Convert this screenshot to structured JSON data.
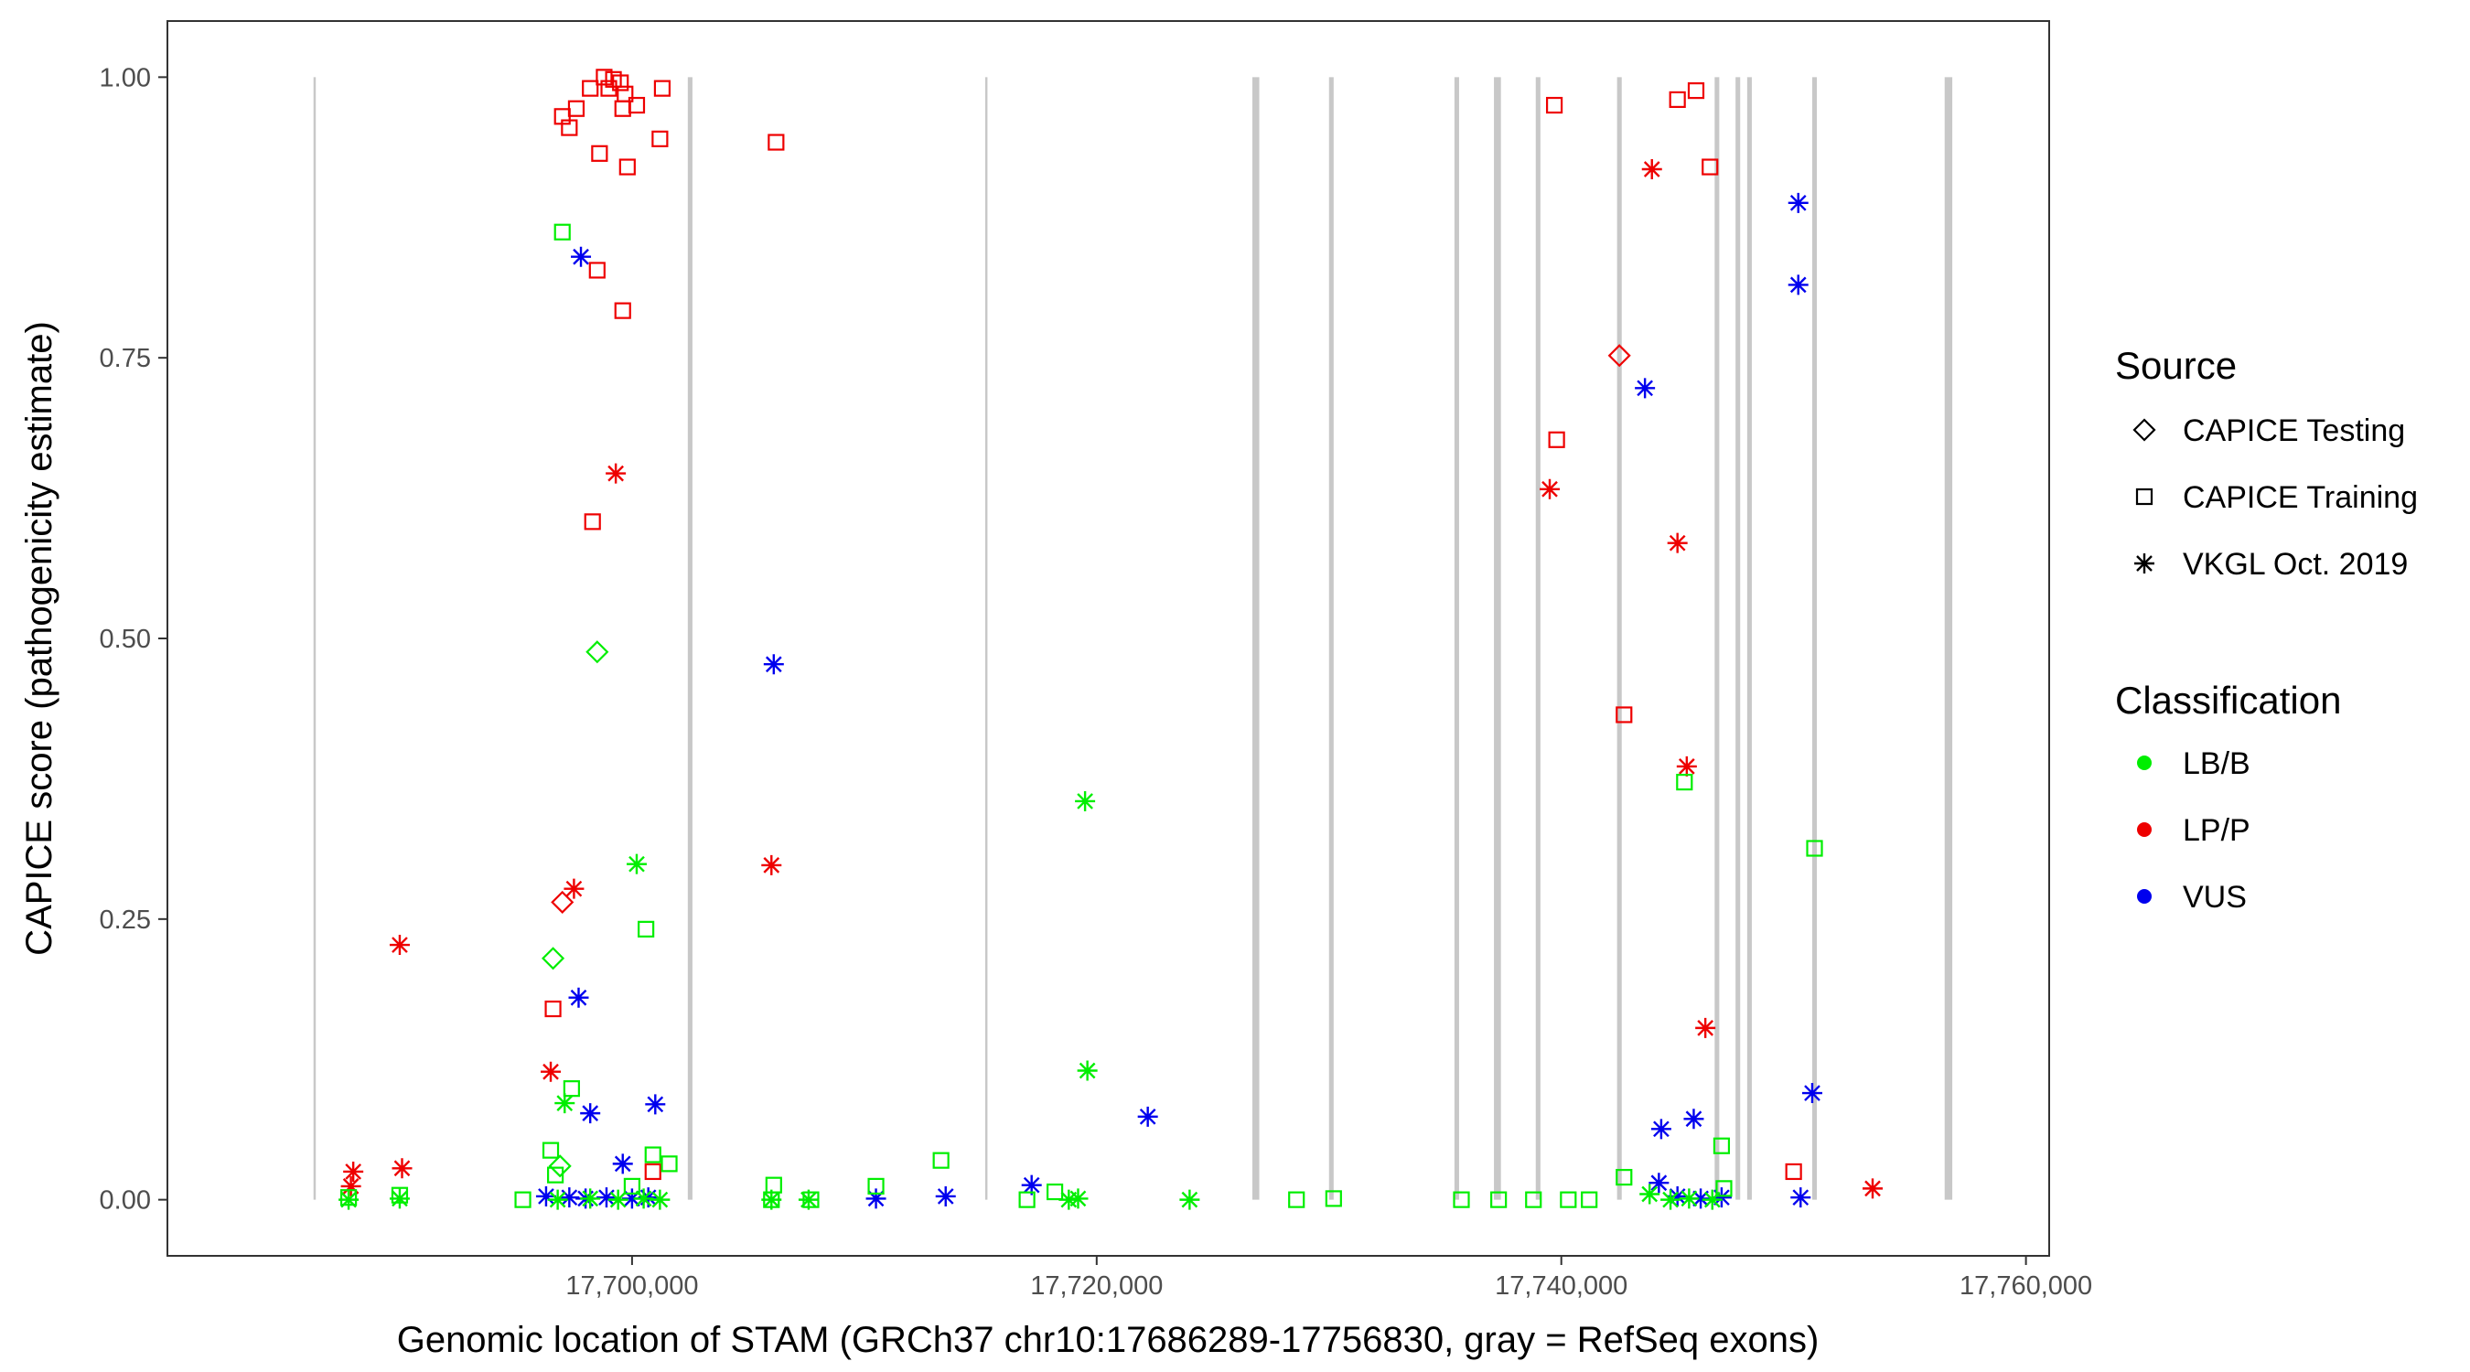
{
  "chart_data": {
    "type": "scatter",
    "xlabel": "Genomic location of STAM (GRCh37 chr10:17686289-17756830, gray = RefSeq exons)",
    "ylabel": "CAPICE score (pathogenicity estimate)",
    "xlim": [
      17680000,
      17761000
    ],
    "ylim": [
      -0.05,
      1.05
    ],
    "x_ticks": [
      17700000,
      17720000,
      17740000,
      17760000
    ],
    "x_tick_labels": [
      "17,700,000",
      "17,720,000",
      "17,740,000",
      "17,760,000"
    ],
    "y_ticks": [
      0,
      0.25,
      0.5,
      0.75,
      1.0
    ],
    "y_tick_labels": [
      "0.00",
      "0.25",
      "0.50",
      "0.75",
      "1.00"
    ],
    "grid": false,
    "exons": [
      [
        17686289,
        17686340
      ],
      [
        17702400,
        17702600
      ],
      [
        17715200,
        17715260
      ],
      [
        17726700,
        17727000
      ],
      [
        17730000,
        17730200
      ],
      [
        17735400,
        17735600
      ],
      [
        17737100,
        17737400
      ],
      [
        17738900,
        17739100
      ],
      [
        17742400,
        17742600
      ],
      [
        17746600,
        17746800
      ],
      [
        17747500,
        17747700
      ],
      [
        17748000,
        17748200
      ],
      [
        17750800,
        17751000
      ],
      [
        17756500,
        17756830
      ]
    ],
    "legend": {
      "placement": "right",
      "source_title": "Source",
      "source_entries": [
        {
          "label": "CAPICE Testing",
          "shape": "diamond"
        },
        {
          "label": "CAPICE Training",
          "shape": "square"
        },
        {
          "label": "VKGL Oct. 2019",
          "shape": "asterisk"
        }
      ],
      "class_title": "Classification",
      "class_entries": [
        {
          "label": "LB/B",
          "color": "#00ee00"
        },
        {
          "label": "LP/P",
          "color": "#ee0000"
        },
        {
          "label": "VUS",
          "color": "#0000ee"
        }
      ]
    },
    "colors": {
      "LB/B": "#00ee00",
      "LP/P": "#ee0000",
      "VUS": "#0000ee"
    },
    "points": [
      {
        "x": 17698800,
        "y": 1.0,
        "src": "square",
        "cls": "LP/P"
      },
      {
        "x": 17699200,
        "y": 0.998,
        "src": "square",
        "cls": "LP/P"
      },
      {
        "x": 17699500,
        "y": 0.995,
        "src": "square",
        "cls": "LP/P"
      },
      {
        "x": 17698200,
        "y": 0.99,
        "src": "square",
        "cls": "LP/P"
      },
      {
        "x": 17701300,
        "y": 0.99,
        "src": "square",
        "cls": "LP/P"
      },
      {
        "x": 17699000,
        "y": 0.99,
        "src": "square",
        "cls": "LP/P"
      },
      {
        "x": 17699700,
        "y": 0.985,
        "src": "square",
        "cls": "LP/P"
      },
      {
        "x": 17699600,
        "y": 0.972,
        "src": "square",
        "cls": "LP/P"
      },
      {
        "x": 17700200,
        "y": 0.975,
        "src": "square",
        "cls": "LP/P"
      },
      {
        "x": 17697600,
        "y": 0.972,
        "src": "square",
        "cls": "LP/P"
      },
      {
        "x": 17697000,
        "y": 0.965,
        "src": "square",
        "cls": "LP/P"
      },
      {
        "x": 17697300,
        "y": 0.955,
        "src": "square",
        "cls": "LP/P"
      },
      {
        "x": 17701200,
        "y": 0.945,
        "src": "square",
        "cls": "LP/P"
      },
      {
        "x": 17706200,
        "y": 0.942,
        "src": "square",
        "cls": "LP/P"
      },
      {
        "x": 17698600,
        "y": 0.932,
        "src": "square",
        "cls": "LP/P"
      },
      {
        "x": 17699800,
        "y": 0.92,
        "src": "square",
        "cls": "LP/P"
      },
      {
        "x": 17698500,
        "y": 0.828,
        "src": "square",
        "cls": "LP/P"
      },
      {
        "x": 17699600,
        "y": 0.792,
        "src": "square",
        "cls": "LP/P"
      },
      {
        "x": 17698300,
        "y": 0.604,
        "src": "square",
        "cls": "LP/P"
      },
      {
        "x": 17696600,
        "y": 0.17,
        "src": "square",
        "cls": "LP/P"
      },
      {
        "x": 17700900,
        "y": 0.025,
        "src": "square",
        "cls": "LP/P"
      },
      {
        "x": 17739700,
        "y": 0.975,
        "src": "square",
        "cls": "LP/P"
      },
      {
        "x": 17739800,
        "y": 0.677,
        "src": "square",
        "cls": "LP/P"
      },
      {
        "x": 17742700,
        "y": 0.432,
        "src": "square",
        "cls": "LP/P"
      },
      {
        "x": 17745000,
        "y": 0.98,
        "src": "square",
        "cls": "LP/P"
      },
      {
        "x": 17745800,
        "y": 0.988,
        "src": "square",
        "cls": "LP/P"
      },
      {
        "x": 17746400,
        "y": 0.92,
        "src": "square",
        "cls": "LP/P"
      },
      {
        "x": 17750000,
        "y": 0.025,
        "src": "square",
        "cls": "LP/P"
      },
      {
        "x": 17742500,
        "y": 0.752,
        "src": "diamond",
        "cls": "LP/P"
      },
      {
        "x": 17697000,
        "y": 0.265,
        "src": "diamond",
        "cls": "LP/P"
      },
      {
        "x": 17699300,
        "y": 0.647,
        "src": "asterisk",
        "cls": "LP/P"
      },
      {
        "x": 17697500,
        "y": 0.277,
        "src": "asterisk",
        "cls": "LP/P"
      },
      {
        "x": 17696500,
        "y": 0.114,
        "src": "asterisk",
        "cls": "LP/P"
      },
      {
        "x": 17706000,
        "y": 0.298,
        "src": "asterisk",
        "cls": "LP/P"
      },
      {
        "x": 17690000,
        "y": 0.227,
        "src": "asterisk",
        "cls": "LP/P"
      },
      {
        "x": 17688000,
        "y": 0.025,
        "src": "asterisk",
        "cls": "LP/P"
      },
      {
        "x": 17690100,
        "y": 0.028,
        "src": "asterisk",
        "cls": "LP/P"
      },
      {
        "x": 17687900,
        "y": 0.012,
        "src": "asterisk",
        "cls": "LP/P"
      },
      {
        "x": 17739500,
        "y": 0.633,
        "src": "asterisk",
        "cls": "LP/P"
      },
      {
        "x": 17743900,
        "y": 0.918,
        "src": "asterisk",
        "cls": "LP/P"
      },
      {
        "x": 17745000,
        "y": 0.585,
        "src": "asterisk",
        "cls": "LP/P"
      },
      {
        "x": 17745400,
        "y": 0.386,
        "src": "asterisk",
        "cls": "LP/P"
      },
      {
        "x": 17746200,
        "y": 0.153,
        "src": "asterisk",
        "cls": "LP/P"
      },
      {
        "x": 17753400,
        "y": 0.01,
        "src": "asterisk",
        "cls": "LP/P"
      },
      {
        "x": 17697800,
        "y": 0.84,
        "src": "asterisk",
        "cls": "VUS"
      },
      {
        "x": 17697700,
        "y": 0.18,
        "src": "asterisk",
        "cls": "VUS"
      },
      {
        "x": 17698200,
        "y": 0.077,
        "src": "asterisk",
        "cls": "VUS"
      },
      {
        "x": 17701000,
        "y": 0.085,
        "src": "asterisk",
        "cls": "VUS"
      },
      {
        "x": 17699600,
        "y": 0.032,
        "src": "asterisk",
        "cls": "VUS"
      },
      {
        "x": 17706100,
        "y": 0.477,
        "src": "asterisk",
        "cls": "VUS"
      },
      {
        "x": 17722200,
        "y": 0.074,
        "src": "asterisk",
        "cls": "VUS"
      },
      {
        "x": 17717200,
        "y": 0.013,
        "src": "asterisk",
        "cls": "VUS"
      },
      {
        "x": 17713500,
        "y": 0.003,
        "src": "asterisk",
        "cls": "VUS"
      },
      {
        "x": 17710500,
        "y": 0.001,
        "src": "asterisk",
        "cls": "VUS"
      },
      {
        "x": 17743600,
        "y": 0.723,
        "src": "asterisk",
        "cls": "VUS"
      },
      {
        "x": 17744300,
        "y": 0.063,
        "src": "asterisk",
        "cls": "VUS"
      },
      {
        "x": 17745700,
        "y": 0.072,
        "src": "asterisk",
        "cls": "VUS"
      },
      {
        "x": 17750200,
        "y": 0.888,
        "src": "asterisk",
        "cls": "VUS"
      },
      {
        "x": 17750200,
        "y": 0.815,
        "src": "asterisk",
        "cls": "VUS"
      },
      {
        "x": 17750800,
        "y": 0.095,
        "src": "asterisk",
        "cls": "VUS"
      },
      {
        "x": 17696300,
        "y": 0.003,
        "src": "asterisk",
        "cls": "VUS"
      },
      {
        "x": 17697300,
        "y": 0.002,
        "src": "asterisk",
        "cls": "VUS"
      },
      {
        "x": 17698000,
        "y": 0.001,
        "src": "asterisk",
        "cls": "VUS"
      },
      {
        "x": 17698900,
        "y": 0.002,
        "src": "asterisk",
        "cls": "VUS"
      },
      {
        "x": 17700000,
        "y": 0.001,
        "src": "asterisk",
        "cls": "VUS"
      },
      {
        "x": 17700700,
        "y": 0.002,
        "src": "asterisk",
        "cls": "VUS"
      },
      {
        "x": 17744200,
        "y": 0.015,
        "src": "asterisk",
        "cls": "VUS"
      },
      {
        "x": 17745000,
        "y": 0.003,
        "src": "asterisk",
        "cls": "VUS"
      },
      {
        "x": 17746000,
        "y": 0.001,
        "src": "asterisk",
        "cls": "VUS"
      },
      {
        "x": 17746900,
        "y": 0.002,
        "src": "asterisk",
        "cls": "VUS"
      },
      {
        "x": 17750300,
        "y": 0.002,
        "src": "asterisk",
        "cls": "VUS"
      },
      {
        "x": 17697000,
        "y": 0.862,
        "src": "square",
        "cls": "LB/B"
      },
      {
        "x": 17700600,
        "y": 0.241,
        "src": "square",
        "cls": "LB/B"
      },
      {
        "x": 17697400,
        "y": 0.099,
        "src": "square",
        "cls": "LB/B"
      },
      {
        "x": 17696500,
        "y": 0.044,
        "src": "square",
        "cls": "LB/B"
      },
      {
        "x": 17700900,
        "y": 0.04,
        "src": "square",
        "cls": "LB/B"
      },
      {
        "x": 17701600,
        "y": 0.032,
        "src": "square",
        "cls": "LB/B"
      },
      {
        "x": 17696700,
        "y": 0.022,
        "src": "square",
        "cls": "LB/B"
      },
      {
        "x": 17700000,
        "y": 0.012,
        "src": "square",
        "cls": "LB/B"
      },
      {
        "x": 17695300,
        "y": 0.0,
        "src": "square",
        "cls": "LB/B"
      },
      {
        "x": 17706100,
        "y": 0.013,
        "src": "square",
        "cls": "LB/B"
      },
      {
        "x": 17707700,
        "y": 0.0,
        "src": "square",
        "cls": "LB/B"
      },
      {
        "x": 17710500,
        "y": 0.012,
        "src": "square",
        "cls": "LB/B"
      },
      {
        "x": 17713300,
        "y": 0.035,
        "src": "square",
        "cls": "LB/B"
      },
      {
        "x": 17717000,
        "y": 0.0,
        "src": "square",
        "cls": "LB/B"
      },
      {
        "x": 17718200,
        "y": 0.007,
        "src": "square",
        "cls": "LB/B"
      },
      {
        "x": 17728600,
        "y": 0.0,
        "src": "square",
        "cls": "LB/B"
      },
      {
        "x": 17730200,
        "y": 0.001,
        "src": "square",
        "cls": "LB/B"
      },
      {
        "x": 17735700,
        "y": 0.0,
        "src": "square",
        "cls": "LB/B"
      },
      {
        "x": 17737300,
        "y": 0.0,
        "src": "square",
        "cls": "LB/B"
      },
      {
        "x": 17738800,
        "y": 0.0,
        "src": "square",
        "cls": "LB/B"
      },
      {
        "x": 17740300,
        "y": 0.0,
        "src": "square",
        "cls": "LB/B"
      },
      {
        "x": 17741200,
        "y": 0.0,
        "src": "square",
        "cls": "LB/B"
      },
      {
        "x": 17742700,
        "y": 0.02,
        "src": "square",
        "cls": "LB/B"
      },
      {
        "x": 17745300,
        "y": 0.372,
        "src": "square",
        "cls": "LB/B"
      },
      {
        "x": 17746900,
        "y": 0.048,
        "src": "square",
        "cls": "LB/B"
      },
      {
        "x": 17747000,
        "y": 0.01,
        "src": "square",
        "cls": "LB/B"
      },
      {
        "x": 17750900,
        "y": 0.313,
        "src": "square",
        "cls": "LB/B"
      },
      {
        "x": 17687800,
        "y": 0.002,
        "src": "square",
        "cls": "LB/B"
      },
      {
        "x": 17690000,
        "y": 0.004,
        "src": "square",
        "cls": "LB/B"
      },
      {
        "x": 17706000,
        "y": 0.0,
        "src": "square",
        "cls": "LB/B"
      },
      {
        "x": 17698500,
        "y": 0.488,
        "src": "diamond",
        "cls": "LB/B"
      },
      {
        "x": 17696600,
        "y": 0.215,
        "src": "diamond",
        "cls": "LB/B"
      },
      {
        "x": 17696900,
        "y": 0.03,
        "src": "diamond",
        "cls": "LB/B"
      },
      {
        "x": 17700200,
        "y": 0.299,
        "src": "asterisk",
        "cls": "LB/B"
      },
      {
        "x": 17697100,
        "y": 0.086,
        "src": "asterisk",
        "cls": "LB/B"
      },
      {
        "x": 17719500,
        "y": 0.355,
        "src": "asterisk",
        "cls": "LB/B"
      },
      {
        "x": 17719600,
        "y": 0.115,
        "src": "asterisk",
        "cls": "LB/B"
      },
      {
        "x": 17718800,
        "y": 0.0,
        "src": "asterisk",
        "cls": "LB/B"
      },
      {
        "x": 17719200,
        "y": 0.001,
        "src": "asterisk",
        "cls": "LB/B"
      },
      {
        "x": 17724000,
        "y": 0.0,
        "src": "asterisk",
        "cls": "LB/B"
      },
      {
        "x": 17687800,
        "y": 0.0,
        "src": "asterisk",
        "cls": "LB/B"
      },
      {
        "x": 17690000,
        "y": 0.001,
        "src": "asterisk",
        "cls": "LB/B"
      },
      {
        "x": 17696800,
        "y": 0.0,
        "src": "asterisk",
        "cls": "LB/B"
      },
      {
        "x": 17698200,
        "y": 0.001,
        "src": "asterisk",
        "cls": "LB/B"
      },
      {
        "x": 17699400,
        "y": 0.0,
        "src": "asterisk",
        "cls": "LB/B"
      },
      {
        "x": 17700500,
        "y": 0.001,
        "src": "asterisk",
        "cls": "LB/B"
      },
      {
        "x": 17701200,
        "y": 0.0,
        "src": "asterisk",
        "cls": "LB/B"
      },
      {
        "x": 17706000,
        "y": 0.0,
        "src": "asterisk",
        "cls": "LB/B"
      },
      {
        "x": 17707600,
        "y": 0.0,
        "src": "asterisk",
        "cls": "LB/B"
      },
      {
        "x": 17743800,
        "y": 0.005,
        "src": "asterisk",
        "cls": "LB/B"
      },
      {
        "x": 17744700,
        "y": 0.0,
        "src": "asterisk",
        "cls": "LB/B"
      },
      {
        "x": 17745500,
        "y": 0.001,
        "src": "asterisk",
        "cls": "LB/B"
      },
      {
        "x": 17746500,
        "y": 0.0,
        "src": "asterisk",
        "cls": "LB/B"
      }
    ]
  }
}
